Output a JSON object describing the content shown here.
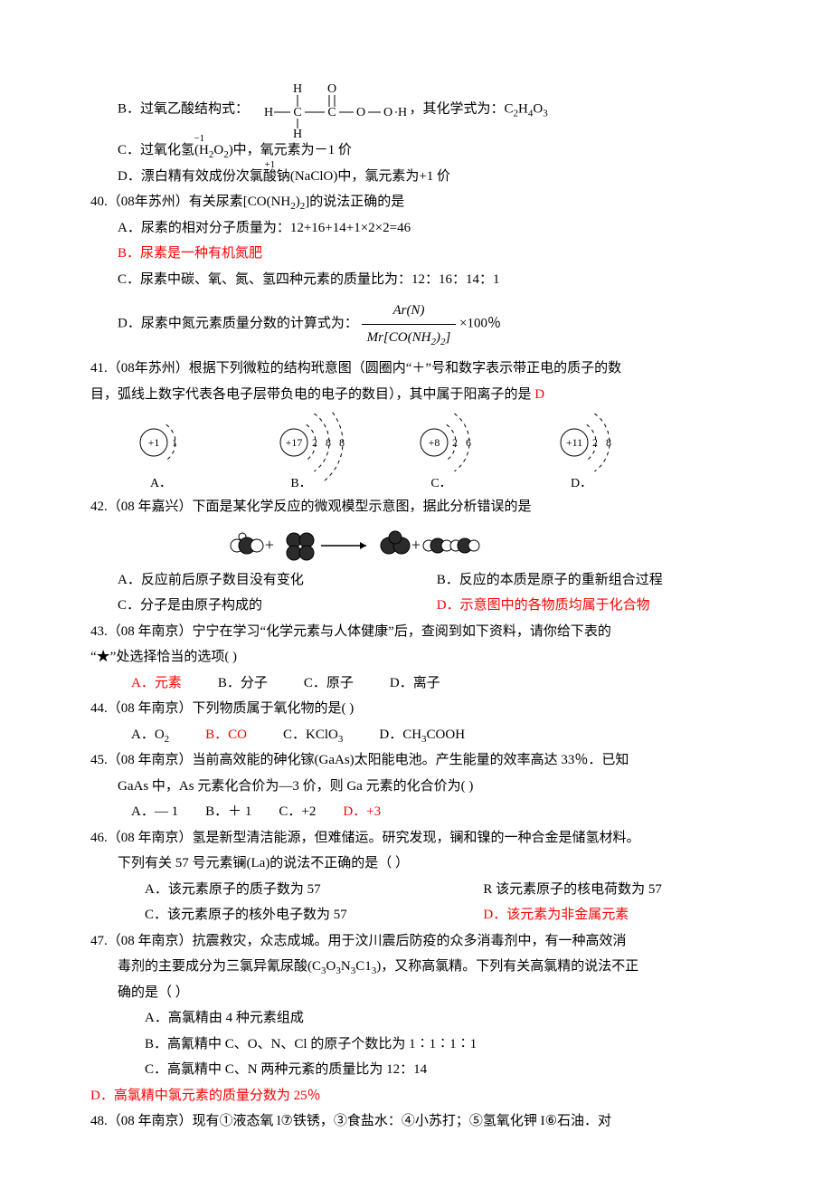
{
  "colors": {
    "text": "#000000",
    "bg": "#ffffff",
    "accent_red": "#ff0000"
  },
  "typography": {
    "font_family": "SimSun",
    "font_size_pt": 15,
    "line_height": 1.9
  },
  "structural_formula": {
    "label_prefix": "B．过氧乙酸结构式：",
    "label_suffix": "，其化学式为：C",
    "sub_a": "2",
    "mid": "H",
    "sub_b": "4",
    "tail": "O",
    "sub_c": "3",
    "atoms": [
      "H",
      "O",
      "H",
      "C",
      "C",
      "O",
      "O",
      "H",
      "H"
    ],
    "bonds_color": "#000000"
  },
  "q39c": {
    "pre": "C．过氧化氢(H",
    "s1": "2",
    "mid": "O",
    "s2": "2",
    "post": ")中，氧元素为－1 价",
    "oxstate": "−1"
  },
  "q39d": {
    "text": "D．漂白精有效成份次氯酸钠(NaClO)中，氯元素为+1 价",
    "oxstate": "+1"
  },
  "q40": {
    "stem": "40.（08年苏州）有关尿素[CO(NH",
    "stem_s1": "2",
    "stem_mid": ")",
    "stem_s2": "2",
    "stem_post": "]的说法正确的是",
    "a": "A．尿素的相对分子质量为：12+16+14+1×2×2=46",
    "b": "B．尿素是一种有机氮肥",
    "c": "C．尿素中碳、氧、氮、氢四种元素的质量比为：12：16：14：1",
    "d_pre": "D．尿素中氮元素质量分数的计算式为：",
    "frac_num": "Ar(N)",
    "frac_den_a": "Mr[CO(NH",
    "frac_den_s1": "2",
    "frac_den_b": ")",
    "frac_den_s2": "2",
    "frac_den_c": "]",
    "d_post": " ×100％"
  },
  "q41": {
    "line1": "41.（08年苏州）根据下列微粒的结构玳意图（圆圈内“＋”号和数字表示带正电的质子的数",
    "line2_pre": "目，弧线上数字代表各电子层带负电的电子的数目），其中属于阳离子的是 ",
    "answer": "D",
    "diagrams": {
      "stroke_color": "#000000",
      "bg": "#ffffff",
      "font_size": 13,
      "items": [
        {
          "label": "A．",
          "nucleus": "+1",
          "shells": [
            "1"
          ]
        },
        {
          "label": "B．",
          "nucleus": "+17",
          "shells": [
            "2",
            "8",
            "8"
          ]
        },
        {
          "label": "C．",
          "nucleus": "+8",
          "shells": [
            "2",
            "6"
          ]
        },
        {
          "label": "D．",
          "nucleus": "+11",
          "shells": [
            "2",
            "8"
          ]
        }
      ]
    }
  },
  "q42": {
    "stem": "42.（08 年嘉兴）下面是某化学反应的微观模型示意图，据此分析错误的是",
    "a": "A．反应前后原子数目没有变化",
    "b": "B．反应的本质是原子的重新组合过程",
    "c": "C．分子是由原子构成的",
    "d": "D．示意图中的各物质均属于化合物",
    "model": {
      "dark_color": "#2b2b2b",
      "light_color": "#ffffff",
      "stroke": "#000000",
      "plus": "+",
      "arrow": "→"
    }
  },
  "q43": {
    "line1": "43.（08 年南京）宁宁在学习“化学元素与人体健康”后，查阅到如下资料，请你给下表的",
    "line2": "“★”处选择恰当的选项(    )",
    "a": "A．元素",
    "b": "B．分子",
    "c": "C．原子",
    "d": "D．离子"
  },
  "q44": {
    "stem": "44.（08 年南京）下列物质属于氧化物的是(    )",
    "a_pre": "A．O",
    "a_s": "2",
    "b": "B．CO",
    "c_pre": "C．KClO",
    "c_s": "3",
    "d_pre": "D．CH",
    "d_s": "3",
    "d_post": "COOH"
  },
  "q45": {
    "line1": "45.（08 年南京）当前高效能的砷化镓(GaAs)太阳能电池。产生能量的效率高达 33％．已知",
    "line2": "GaAs 中，As 元素化合价为—3 价，则 Ga 元素的化合价为(    )",
    "a": "A．— 1",
    "b": "B．＋ 1",
    "c": "C．+2",
    "d": "D．+3"
  },
  "q46": {
    "line1": "46.（08 年南京）氢是新型清洁能源，但难储运。研究发现，镧和镍的一种合金是储氢材料。",
    "line2": "下列有关 57 号元素镧(La)的说法不正确的是（  ）",
    "a": "A．该元素原子的质子数为 57",
    "b": "R 该元素原子的核电荷数为 57",
    "c": "C．该元素原子的核外电子数为 57",
    "d": "D．该元素为非金属元素"
  },
  "q47": {
    "line1": "47.（08 年南京）抗震救灾，众志成城。用于汶川震后防疫的众多消毒剂中，有一种高效消",
    "line2_pre": "毒剂的主要成分为三氯异氰尿酸(C",
    "l2_s1": "3",
    "l2_a": "O",
    "l2_s2": "3",
    "l2_b": "N",
    "l2_s3": "3",
    "l2_c": "C1",
    "l2_s4": "3",
    "line2_post": ")，又称高氯精。下列有关高氯精的说法不正",
    "line3": "确的是（  ）",
    "a": "A．高氯精由 4 种元素组成",
    "b": "B．高氰精中 C、O、N、Cl 的原子个数比为 1∶1∶1∶1",
    "c": "C．高氯精中 C、N 两种元紊的质量比为 12：14",
    "d": "D．高氯精中氯元素的质量分数为 25％"
  },
  "q48": {
    "stem": "48.（08 年南京）现有①液态氧 l⑦铁锈，③食盐水：④小苏打；⑤氢氧化钾 I⑥石油．对"
  }
}
